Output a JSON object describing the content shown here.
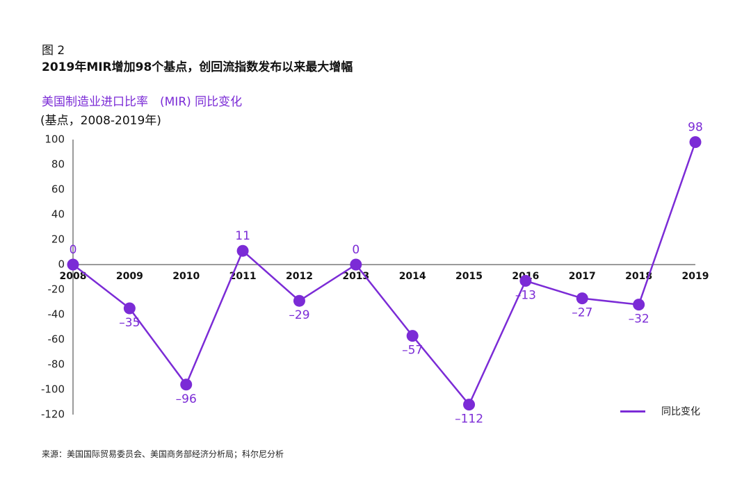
{
  "figure": {
    "label": "图 2",
    "title": "2019年MIR增加98个基点，创回流指数发布以来最大增幅",
    "subtitle": "美国制造业进口比率　(MIR) 同比变化",
    "unit": "(基点，2008-2019年)",
    "source": "来源：美国国际贸易委员会、美国商务部经济分析局；科尔尼分析"
  },
  "colors": {
    "series": "#7b2bd6",
    "axis": "#9a9a9a",
    "text": "#111111"
  },
  "chart_data": {
    "type": "line",
    "title": "美国制造业进口比率　(MIR) 同比变化",
    "ylabel": "(基点，2008-2019年)",
    "x": [
      "2008",
      "2009",
      "2010",
      "2011",
      "2012",
      "2013",
      "2014",
      "2015",
      "2016",
      "2017",
      "2018",
      "2019"
    ],
    "series": [
      {
        "name": "同比变化",
        "values": [
          0,
          -35,
          -96,
          11,
          -29,
          0,
          -57,
          -112,
          -13,
          -27,
          -32,
          98
        ],
        "labels": [
          "0",
          "–35",
          "–96",
          "11",
          "–29",
          "0",
          "–57",
          "–112",
          "–13",
          "–27",
          "–32",
          "98"
        ]
      }
    ],
    "yticks": [
      100,
      80,
      60,
      40,
      20,
      0,
      -20,
      -40,
      -60,
      -80,
      -100,
      -120
    ],
    "ylim": [
      -120,
      100
    ],
    "grid": false,
    "legend": "bottom-right"
  }
}
